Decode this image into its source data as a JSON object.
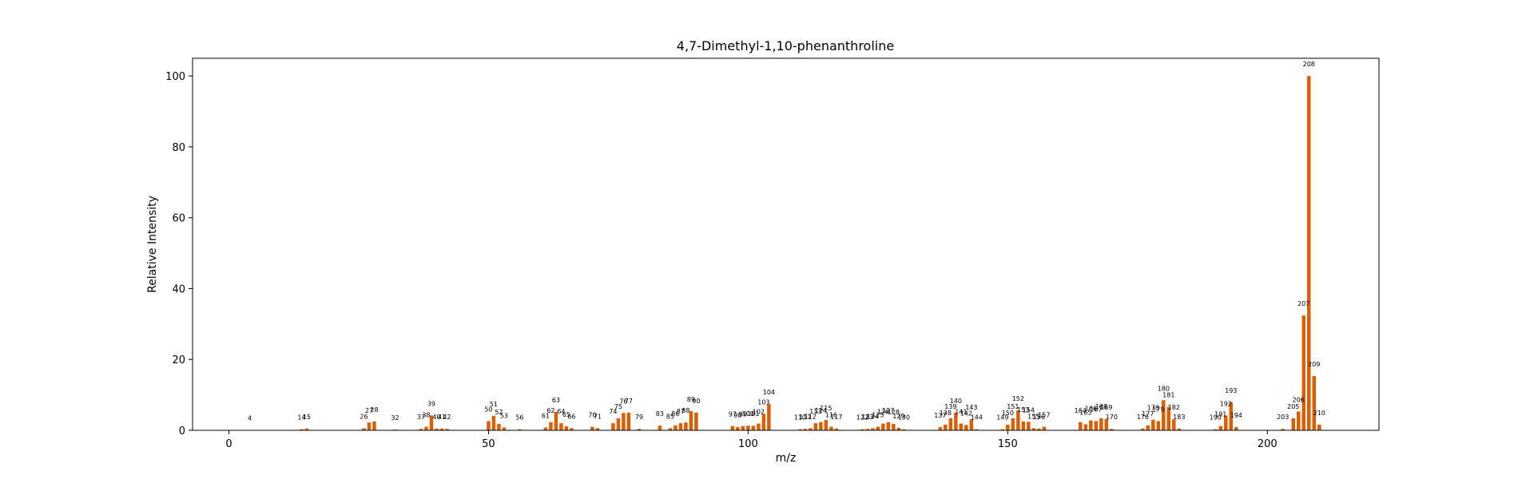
{
  "chart_data": {
    "type": "bar",
    "title": "4,7-Dimethyl-1,10-phenanthroline",
    "xlabel": "m/z",
    "ylabel": "Relative Intensity",
    "xlim": [
      -7,
      221.5
    ],
    "ylim": [
      0,
      105
    ],
    "xticks": [
      0,
      50,
      100,
      150,
      200
    ],
    "yticks": [
      0,
      20,
      40,
      60,
      80,
      100
    ],
    "bar_color": "#d95f02",
    "grid": false,
    "peaks": [
      {
        "mz": 4,
        "intensity": 0.1
      },
      {
        "mz": 14,
        "intensity": 0.3
      },
      {
        "mz": 15,
        "intensity": 0.5
      },
      {
        "mz": 26,
        "intensity": 0.6
      },
      {
        "mz": 27,
        "intensity": 2.2
      },
      {
        "mz": 28,
        "intensity": 2.5
      },
      {
        "mz": 32,
        "intensity": 0.2
      },
      {
        "mz": 37,
        "intensity": 0.4
      },
      {
        "mz": 38,
        "intensity": 1.0
      },
      {
        "mz": 39,
        "intensity": 4.2
      },
      {
        "mz": 40,
        "intensity": 0.5
      },
      {
        "mz": 41,
        "intensity": 0.5
      },
      {
        "mz": 42,
        "intensity": 0.4
      },
      {
        "mz": 50,
        "intensity": 2.6
      },
      {
        "mz": 51,
        "intensity": 4.1
      },
      {
        "mz": 52,
        "intensity": 1.8
      },
      {
        "mz": 53,
        "intensity": 0.8
      },
      {
        "mz": 56,
        "intensity": 0.3
      },
      {
        "mz": 61,
        "intensity": 0.8
      },
      {
        "mz": 62,
        "intensity": 2.3
      },
      {
        "mz": 63,
        "intensity": 5.2
      },
      {
        "mz": 64,
        "intensity": 2.0
      },
      {
        "mz": 65,
        "intensity": 1.1
      },
      {
        "mz": 66,
        "intensity": 0.6
      },
      {
        "mz": 70,
        "intensity": 1.0
      },
      {
        "mz": 71,
        "intensity": 0.6
      },
      {
        "mz": 74,
        "intensity": 2.0
      },
      {
        "mz": 75,
        "intensity": 3.4
      },
      {
        "mz": 76,
        "intensity": 4.9
      },
      {
        "mz": 77,
        "intensity": 5.0
      },
      {
        "mz": 79,
        "intensity": 0.4
      },
      {
        "mz": 83,
        "intensity": 1.3
      },
      {
        "mz": 85,
        "intensity": 0.6
      },
      {
        "mz": 86,
        "intensity": 1.4
      },
      {
        "mz": 87,
        "intensity": 2.0
      },
      {
        "mz": 88,
        "intensity": 2.2
      },
      {
        "mz": 89,
        "intensity": 5.4
      },
      {
        "mz": 90,
        "intensity": 5.0
      },
      {
        "mz": 97,
        "intensity": 1.2
      },
      {
        "mz": 98,
        "intensity": 0.9
      },
      {
        "mz": 99,
        "intensity": 1.2
      },
      {
        "mz": 100,
        "intensity": 1.3
      },
      {
        "mz": 101,
        "intensity": 1.3
      },
      {
        "mz": 102,
        "intensity": 1.9
      },
      {
        "mz": 103,
        "intensity": 4.6
      },
      {
        "mz": 104,
        "intensity": 7.4
      },
      {
        "mz": 110,
        "intensity": 0.3
      },
      {
        "mz": 111,
        "intensity": 0.4
      },
      {
        "mz": 112,
        "intensity": 0.6
      },
      {
        "mz": 113,
        "intensity": 2.0
      },
      {
        "mz": 114,
        "intensity": 2.3
      },
      {
        "mz": 115,
        "intensity": 2.9
      },
      {
        "mz": 116,
        "intensity": 1.0
      },
      {
        "mz": 117,
        "intensity": 0.5
      },
      {
        "mz": 122,
        "intensity": 0.3
      },
      {
        "mz": 123,
        "intensity": 0.4
      },
      {
        "mz": 124,
        "intensity": 0.6
      },
      {
        "mz": 125,
        "intensity": 1.0
      },
      {
        "mz": 126,
        "intensity": 1.9
      },
      {
        "mz": 127,
        "intensity": 2.3
      },
      {
        "mz": 128,
        "intensity": 1.8
      },
      {
        "mz": 129,
        "intensity": 0.7
      },
      {
        "mz": 130,
        "intensity": 0.3
      },
      {
        "mz": 137,
        "intensity": 0.9
      },
      {
        "mz": 138,
        "intensity": 1.6
      },
      {
        "mz": 139,
        "intensity": 3.4
      },
      {
        "mz": 140,
        "intensity": 5.0
      },
      {
        "mz": 141,
        "intensity": 1.9
      },
      {
        "mz": 142,
        "intensity": 1.5
      },
      {
        "mz": 143,
        "intensity": 3.1
      },
      {
        "mz": 144,
        "intensity": 0.3
      },
      {
        "mz": 149,
        "intensity": 0.3
      },
      {
        "mz": 150,
        "intensity": 1.6
      },
      {
        "mz": 151,
        "intensity": 3.4
      },
      {
        "mz": 152,
        "intensity": 5.6
      },
      {
        "mz": 153,
        "intensity": 2.5
      },
      {
        "mz": 154,
        "intensity": 2.4
      },
      {
        "mz": 155,
        "intensity": 0.6
      },
      {
        "mz": 156,
        "intensity": 0.5
      },
      {
        "mz": 157,
        "intensity": 1.0
      },
      {
        "mz": 164,
        "intensity": 2.3
      },
      {
        "mz": 165,
        "intensity": 1.7
      },
      {
        "mz": 166,
        "intensity": 2.8
      },
      {
        "mz": 167,
        "intensity": 2.6
      },
      {
        "mz": 168,
        "intensity": 3.4
      },
      {
        "mz": 169,
        "intensity": 3.2
      },
      {
        "mz": 170,
        "intensity": 0.4
      },
      {
        "mz": 176,
        "intensity": 0.5
      },
      {
        "mz": 177,
        "intensity": 1.4
      },
      {
        "mz": 178,
        "intensity": 3.0
      },
      {
        "mz": 179,
        "intensity": 2.6
      },
      {
        "mz": 180,
        "intensity": 8.5
      },
      {
        "mz": 181,
        "intensity": 6.6
      },
      {
        "mz": 182,
        "intensity": 3.1
      },
      {
        "mz": 183,
        "intensity": 0.5
      },
      {
        "mz": 190,
        "intensity": 0.3
      },
      {
        "mz": 191,
        "intensity": 1.2
      },
      {
        "mz": 192,
        "intensity": 4.2
      },
      {
        "mz": 193,
        "intensity": 7.9
      },
      {
        "mz": 194,
        "intensity": 0.9
      },
      {
        "mz": 203,
        "intensity": 0.4
      },
      {
        "mz": 205,
        "intensity": 3.4
      },
      {
        "mz": 206,
        "intensity": 5.3
      },
      {
        "mz": 207,
        "intensity": 32.4
      },
      {
        "mz": 208,
        "intensity": 100.0
      },
      {
        "mz": 209,
        "intensity": 15.3
      },
      {
        "mz": 210,
        "intensity": 1.6
      }
    ]
  }
}
